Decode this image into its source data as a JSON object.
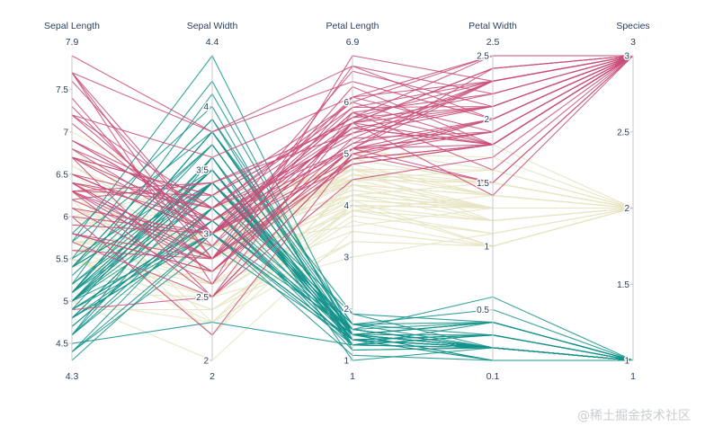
{
  "chart_data": {
    "type": "parallel-coordinates",
    "title": "",
    "dimensions": [
      {
        "label": "Sepal Length",
        "range": [
          4.3,
          7.9
        ],
        "range_min_label": "4.3",
        "range_max_label": "7.9",
        "ticks": [
          4.5,
          5,
          5.5,
          6,
          6.5,
          7,
          7.5
        ],
        "tick_labels": [
          "4.5",
          "5",
          "5.5",
          "6",
          "6.5",
          "7",
          "7.5"
        ]
      },
      {
        "label": "Sepal Width",
        "range": [
          2,
          4.4
        ],
        "range_min_label": "2",
        "range_max_label": "4.4",
        "ticks": [
          2,
          2.5,
          3,
          3.5,
          4
        ],
        "tick_labels": [
          "2",
          "2.5",
          "3",
          "3.5",
          "4"
        ]
      },
      {
        "label": "Petal Length",
        "range": [
          1,
          6.9
        ],
        "range_min_label": "1",
        "range_max_label": "6.9",
        "ticks": [
          1,
          2,
          3,
          4,
          5,
          6
        ],
        "tick_labels": [
          "1",
          "2",
          "3",
          "4",
          "5",
          "6"
        ]
      },
      {
        "label": "Petal Width",
        "range": [
          0.1,
          2.5
        ],
        "range_min_label": "0.1",
        "range_max_label": "2.5",
        "ticks": [
          0.5,
          1,
          1.5,
          2,
          2.5
        ],
        "tick_labels": [
          "0.5",
          "1",
          "1.5",
          "2",
          "2.5"
        ]
      },
      {
        "label": "Species",
        "range": [
          1,
          3
        ],
        "range_min_label": "1",
        "range_max_label": "3",
        "ticks": [
          1,
          1.5,
          2,
          2.5,
          3
        ],
        "tick_labels": [
          "1",
          "1.5",
          "2",
          "2.5",
          "3"
        ]
      }
    ],
    "line_colors": {
      "1": "#15938c",
      "2": "#e8e6c4",
      "3": "#c94d79"
    },
    "records": [
      [
        5.1,
        3.5,
        1.4,
        0.2,
        1
      ],
      [
        4.9,
        3.0,
        1.4,
        0.2,
        1
      ],
      [
        4.7,
        3.2,
        1.3,
        0.2,
        1
      ],
      [
        4.6,
        3.1,
        1.5,
        0.2,
        1
      ],
      [
        5.0,
        3.6,
        1.4,
        0.2,
        1
      ],
      [
        5.4,
        3.9,
        1.7,
        0.4,
        1
      ],
      [
        4.6,
        3.4,
        1.4,
        0.3,
        1
      ],
      [
        5.0,
        3.4,
        1.5,
        0.2,
        1
      ],
      [
        4.4,
        2.9,
        1.4,
        0.2,
        1
      ],
      [
        4.9,
        3.1,
        1.5,
        0.1,
        1
      ],
      [
        5.4,
        3.7,
        1.5,
        0.2,
        1
      ],
      [
        4.8,
        3.4,
        1.6,
        0.2,
        1
      ],
      [
        4.8,
        3.0,
        1.4,
        0.1,
        1
      ],
      [
        4.3,
        3.0,
        1.1,
        0.1,
        1
      ],
      [
        5.8,
        4.0,
        1.2,
        0.2,
        1
      ],
      [
        5.7,
        4.4,
        1.5,
        0.4,
        1
      ],
      [
        5.4,
        3.9,
        1.3,
        0.4,
        1
      ],
      [
        5.1,
        3.5,
        1.4,
        0.3,
        1
      ],
      [
        5.7,
        3.8,
        1.7,
        0.3,
        1
      ],
      [
        5.1,
        3.8,
        1.5,
        0.3,
        1
      ],
      [
        5.4,
        3.4,
        1.7,
        0.2,
        1
      ],
      [
        5.1,
        3.7,
        1.5,
        0.4,
        1
      ],
      [
        4.6,
        3.6,
        1.0,
        0.2,
        1
      ],
      [
        5.1,
        3.3,
        1.7,
        0.5,
        1
      ],
      [
        4.8,
        3.4,
        1.9,
        0.2,
        1
      ],
      [
        5.0,
        3.0,
        1.6,
        0.2,
        1
      ],
      [
        5.0,
        3.4,
        1.6,
        0.4,
        1
      ],
      [
        5.2,
        3.5,
        1.5,
        0.2,
        1
      ],
      [
        5.2,
        3.4,
        1.4,
        0.2,
        1
      ],
      [
        4.7,
        3.2,
        1.6,
        0.2,
        1
      ],
      [
        4.8,
        3.1,
        1.6,
        0.2,
        1
      ],
      [
        5.4,
        3.4,
        1.5,
        0.4,
        1
      ],
      [
        5.2,
        4.1,
        1.5,
        0.1,
        1
      ],
      [
        5.5,
        4.2,
        1.4,
        0.2,
        1
      ],
      [
        4.9,
        3.1,
        1.5,
        0.2,
        1
      ],
      [
        5.0,
        3.2,
        1.2,
        0.2,
        1
      ],
      [
        5.5,
        3.5,
        1.3,
        0.2,
        1
      ],
      [
        4.9,
        3.6,
        1.4,
        0.1,
        1
      ],
      [
        4.4,
        3.0,
        1.3,
        0.2,
        1
      ],
      [
        5.1,
        3.4,
        1.5,
        0.2,
        1
      ],
      [
        5.0,
        3.5,
        1.3,
        0.3,
        1
      ],
      [
        4.5,
        2.3,
        1.3,
        0.3,
        1
      ],
      [
        4.4,
        3.2,
        1.3,
        0.2,
        1
      ],
      [
        5.0,
        3.5,
        1.6,
        0.6,
        1
      ],
      [
        5.1,
        3.8,
        1.9,
        0.4,
        1
      ],
      [
        4.8,
        3.0,
        1.4,
        0.3,
        1
      ],
      [
        5.1,
        3.8,
        1.6,
        0.2,
        1
      ],
      [
        4.6,
        3.2,
        1.4,
        0.2,
        1
      ],
      [
        5.3,
        3.7,
        1.5,
        0.2,
        1
      ],
      [
        5.0,
        3.3,
        1.4,
        0.2,
        1
      ],
      [
        7.0,
        3.2,
        4.7,
        1.4,
        2
      ],
      [
        6.4,
        3.2,
        4.5,
        1.5,
        2
      ],
      [
        6.9,
        3.1,
        4.9,
        1.5,
        2
      ],
      [
        5.5,
        2.3,
        4.0,
        1.3,
        2
      ],
      [
        6.5,
        2.8,
        4.6,
        1.5,
        2
      ],
      [
        5.7,
        2.8,
        4.5,
        1.3,
        2
      ],
      [
        6.3,
        3.3,
        4.7,
        1.6,
        2
      ],
      [
        4.9,
        2.4,
        3.3,
        1.0,
        2
      ],
      [
        6.6,
        2.9,
        4.6,
        1.3,
        2
      ],
      [
        5.2,
        2.7,
        3.9,
        1.4,
        2
      ],
      [
        5.0,
        2.0,
        3.5,
        1.0,
        2
      ],
      [
        5.9,
        3.0,
        4.2,
        1.5,
        2
      ],
      [
        6.0,
        2.2,
        4.0,
        1.0,
        2
      ],
      [
        6.1,
        2.9,
        4.7,
        1.4,
        2
      ],
      [
        5.6,
        2.9,
        3.6,
        1.3,
        2
      ],
      [
        6.7,
        3.1,
        4.4,
        1.4,
        2
      ],
      [
        5.6,
        3.0,
        4.5,
        1.5,
        2
      ],
      [
        5.8,
        2.7,
        4.1,
        1.0,
        2
      ],
      [
        6.2,
        2.2,
        4.5,
        1.5,
        2
      ],
      [
        5.6,
        2.5,
        3.9,
        1.1,
        2
      ],
      [
        5.9,
        3.2,
        4.8,
        1.8,
        2
      ],
      [
        6.1,
        2.8,
        4.0,
        1.3,
        2
      ],
      [
        6.3,
        2.5,
        4.9,
        1.5,
        2
      ],
      [
        6.1,
        2.8,
        4.7,
        1.2,
        2
      ],
      [
        6.4,
        2.9,
        4.3,
        1.3,
        2
      ],
      [
        6.6,
        3.0,
        4.4,
        1.4,
        2
      ],
      [
        6.8,
        2.8,
        4.8,
        1.4,
        2
      ],
      [
        6.7,
        3.0,
        5.0,
        1.7,
        2
      ],
      [
        6.0,
        2.9,
        4.5,
        1.5,
        2
      ],
      [
        5.7,
        2.6,
        3.5,
        1.0,
        2
      ],
      [
        5.5,
        2.4,
        3.8,
        1.1,
        2
      ],
      [
        5.5,
        2.4,
        3.7,
        1.0,
        2
      ],
      [
        5.8,
        2.7,
        3.9,
        1.2,
        2
      ],
      [
        6.0,
        2.7,
        5.1,
        1.6,
        2
      ],
      [
        5.4,
        3.0,
        4.5,
        1.5,
        2
      ],
      [
        6.0,
        3.4,
        4.5,
        1.6,
        2
      ],
      [
        6.7,
        3.1,
        4.7,
        1.5,
        2
      ],
      [
        6.3,
        2.3,
        4.4,
        1.3,
        2
      ],
      [
        5.6,
        3.0,
        4.1,
        1.3,
        2
      ],
      [
        5.5,
        2.5,
        4.0,
        1.3,
        2
      ],
      [
        5.5,
        2.6,
        4.4,
        1.2,
        2
      ],
      [
        6.1,
        3.0,
        4.6,
        1.4,
        2
      ],
      [
        5.8,
        2.6,
        4.0,
        1.2,
        2
      ],
      [
        5.0,
        2.3,
        3.3,
        1.0,
        2
      ],
      [
        5.6,
        2.7,
        4.2,
        1.3,
        2
      ],
      [
        5.7,
        3.0,
        4.2,
        1.2,
        2
      ],
      [
        5.7,
        2.9,
        4.2,
        1.3,
        2
      ],
      [
        6.2,
        2.9,
        4.3,
        1.3,
        2
      ],
      [
        5.1,
        2.5,
        3.0,
        1.1,
        2
      ],
      [
        5.7,
        2.8,
        4.1,
        1.3,
        2
      ],
      [
        6.3,
        3.3,
        6.0,
        2.5,
        3
      ],
      [
        5.8,
        2.7,
        5.1,
        1.9,
        3
      ],
      [
        7.1,
        3.0,
        5.9,
        2.1,
        3
      ],
      [
        6.3,
        2.9,
        5.6,
        1.8,
        3
      ],
      [
        6.5,
        3.0,
        5.8,
        2.2,
        3
      ],
      [
        7.6,
        3.0,
        6.6,
        2.1,
        3
      ],
      [
        4.9,
        2.5,
        4.5,
        1.7,
        3
      ],
      [
        7.3,
        2.9,
        6.3,
        1.8,
        3
      ],
      [
        6.7,
        2.5,
        5.8,
        1.8,
        3
      ],
      [
        7.2,
        3.6,
        6.1,
        2.5,
        3
      ],
      [
        6.5,
        3.2,
        5.1,
        2.0,
        3
      ],
      [
        6.4,
        2.7,
        5.3,
        1.9,
        3
      ],
      [
        6.8,
        3.0,
        5.5,
        2.1,
        3
      ],
      [
        5.7,
        2.5,
        5.0,
        2.0,
        3
      ],
      [
        5.8,
        2.8,
        5.1,
        2.4,
        3
      ],
      [
        6.4,
        3.2,
        5.3,
        2.3,
        3
      ],
      [
        6.5,
        3.0,
        5.5,
        1.8,
        3
      ],
      [
        7.7,
        3.8,
        6.7,
        2.2,
        3
      ],
      [
        7.7,
        2.6,
        6.9,
        2.3,
        3
      ],
      [
        6.0,
        2.2,
        5.0,
        1.5,
        3
      ],
      [
        6.9,
        3.2,
        5.7,
        2.3,
        3
      ],
      [
        5.6,
        2.8,
        4.9,
        2.0,
        3
      ],
      [
        7.7,
        2.8,
        6.7,
        2.0,
        3
      ],
      [
        6.3,
        2.7,
        4.9,
        1.8,
        3
      ],
      [
        6.7,
        3.3,
        5.7,
        2.1,
        3
      ],
      [
        7.2,
        3.2,
        6.0,
        1.8,
        3
      ],
      [
        6.2,
        2.8,
        4.8,
        1.8,
        3
      ],
      [
        6.1,
        3.0,
        4.9,
        1.8,
        3
      ],
      [
        6.4,
        2.8,
        5.6,
        2.1,
        3
      ],
      [
        7.2,
        3.0,
        5.8,
        1.6,
        3
      ],
      [
        7.4,
        2.8,
        6.1,
        1.9,
        3
      ],
      [
        7.9,
        3.8,
        6.4,
        2.0,
        3
      ],
      [
        6.4,
        2.8,
        5.6,
        2.2,
        3
      ],
      [
        6.3,
        2.8,
        5.1,
        1.5,
        3
      ],
      [
        6.1,
        2.6,
        5.6,
        1.4,
        3
      ],
      [
        7.7,
        3.0,
        6.1,
        2.3,
        3
      ],
      [
        6.3,
        3.4,
        5.6,
        2.4,
        3
      ],
      [
        6.4,
        3.1,
        5.5,
        1.8,
        3
      ],
      [
        6.0,
        3.0,
        4.8,
        1.8,
        3
      ],
      [
        6.9,
        3.1,
        5.4,
        2.1,
        3
      ],
      [
        6.7,
        3.1,
        5.6,
        2.4,
        3
      ],
      [
        6.9,
        3.1,
        5.1,
        2.3,
        3
      ],
      [
        5.8,
        2.7,
        5.1,
        1.9,
        3
      ],
      [
        6.8,
        3.2,
        5.9,
        2.3,
        3
      ],
      [
        6.7,
        3.3,
        5.7,
        2.5,
        3
      ],
      [
        6.7,
        3.0,
        5.2,
        2.3,
        3
      ],
      [
        6.3,
        2.5,
        5.0,
        1.9,
        3
      ],
      [
        6.5,
        3.0,
        5.2,
        2.0,
        3
      ],
      [
        6.2,
        3.4,
        5.4,
        2.3,
        3
      ],
      [
        5.9,
        3.0,
        5.1,
        1.8,
        3
      ]
    ]
  },
  "watermark": "@稀土掘金技术社区"
}
